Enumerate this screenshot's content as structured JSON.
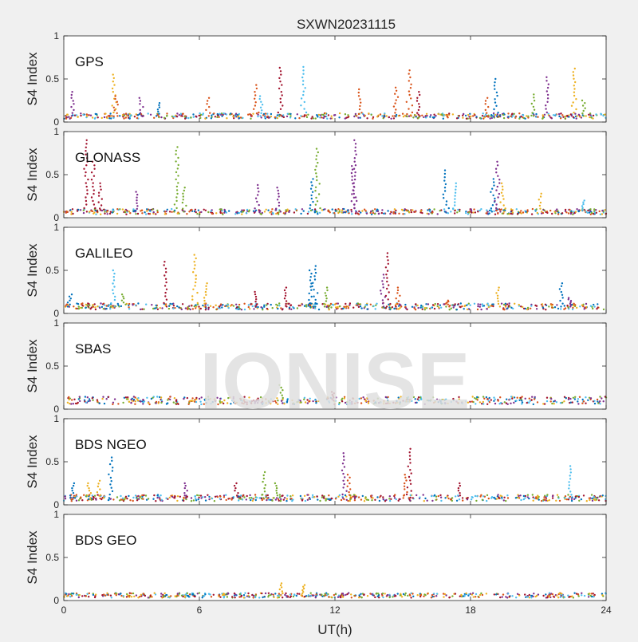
{
  "figure": {
    "title": "SXWN20231115",
    "xlabel": "UT(h)",
    "ylabel": "S4 Index",
    "watermark": "IONISE"
  },
  "colors": {
    "background": "#f0f0f0",
    "axes_bg": "#ffffff",
    "axis": "#262626",
    "watermark": "#e0e0e0",
    "series": [
      "#0072bd",
      "#d95319",
      "#edb120",
      "#7e2f8e",
      "#77ac30",
      "#4dbeee",
      "#a2142f"
    ]
  },
  "chart_data": [
    {
      "type": "scatter",
      "title": "GPS",
      "ylabel": "S4 Index",
      "xlim": [
        0,
        24
      ],
      "ylim": [
        0,
        1
      ],
      "xticks": [
        0,
        6,
        12,
        18,
        24
      ],
      "yticks": [
        0,
        0.5,
        1
      ],
      "grid": false,
      "baseline": 0.07,
      "spikes": [
        {
          "x": 0.4,
          "y": 0.35,
          "c": 3
        },
        {
          "x": 2.2,
          "y": 0.55,
          "c": 2
        },
        {
          "x": 2.3,
          "y": 0.3,
          "c": 1
        },
        {
          "x": 3.4,
          "y": 0.28,
          "c": 3
        },
        {
          "x": 4.2,
          "y": 0.22,
          "c": 0
        },
        {
          "x": 6.4,
          "y": 0.28,
          "c": 1
        },
        {
          "x": 8.5,
          "y": 0.43,
          "c": 1
        },
        {
          "x": 8.7,
          "y": 0.3,
          "c": 5
        },
        {
          "x": 9.6,
          "y": 0.63,
          "c": 6
        },
        {
          "x": 10.6,
          "y": 0.64,
          "c": 5
        },
        {
          "x": 13.1,
          "y": 0.38,
          "c": 1
        },
        {
          "x": 14.7,
          "y": 0.4,
          "c": 1
        },
        {
          "x": 15.3,
          "y": 0.6,
          "c": 1
        },
        {
          "x": 15.7,
          "y": 0.35,
          "c": 6
        },
        {
          "x": 18.7,
          "y": 0.28,
          "c": 1
        },
        {
          "x": 19.1,
          "y": 0.5,
          "c": 0
        },
        {
          "x": 20.8,
          "y": 0.32,
          "c": 4
        },
        {
          "x": 21.4,
          "y": 0.52,
          "c": 3
        },
        {
          "x": 22.6,
          "y": 0.62,
          "c": 2
        },
        {
          "x": 23.0,
          "y": 0.25,
          "c": 4
        }
      ]
    },
    {
      "type": "scatter",
      "title": "GLONASS",
      "ylabel": "S4 Index",
      "xlim": [
        0,
        24
      ],
      "ylim": [
        0,
        1
      ],
      "xticks": [
        0,
        6,
        12,
        18,
        24
      ],
      "yticks": [
        0,
        0.5,
        1
      ],
      "grid": false,
      "baseline": 0.07,
      "spikes": [
        {
          "x": 1.0,
          "y": 0.9,
          "c": 6
        },
        {
          "x": 1.3,
          "y": 0.65,
          "c": 6
        },
        {
          "x": 1.6,
          "y": 0.4,
          "c": 6
        },
        {
          "x": 3.2,
          "y": 0.3,
          "c": 3
        },
        {
          "x": 5.0,
          "y": 0.82,
          "c": 4
        },
        {
          "x": 5.3,
          "y": 0.35,
          "c": 4
        },
        {
          "x": 8.6,
          "y": 0.38,
          "c": 3
        },
        {
          "x": 9.5,
          "y": 0.35,
          "c": 3
        },
        {
          "x": 11.2,
          "y": 0.8,
          "c": 4
        },
        {
          "x": 11.0,
          "y": 0.45,
          "c": 0
        },
        {
          "x": 12.8,
          "y": 0.6,
          "c": 3
        },
        {
          "x": 12.9,
          "y": 0.9,
          "c": 3
        },
        {
          "x": 16.9,
          "y": 0.55,
          "c": 0
        },
        {
          "x": 17.3,
          "y": 0.4,
          "c": 5
        },
        {
          "x": 19.0,
          "y": 0.45,
          "c": 0
        },
        {
          "x": 19.2,
          "y": 0.65,
          "c": 3
        },
        {
          "x": 19.4,
          "y": 0.4,
          "c": 2
        },
        {
          "x": 21.1,
          "y": 0.28,
          "c": 2
        },
        {
          "x": 23.0,
          "y": 0.2,
          "c": 5
        }
      ]
    },
    {
      "type": "scatter",
      "title": "GALILEO",
      "ylabel": "S4 Index",
      "xlim": [
        0,
        24
      ],
      "ylim": [
        0,
        1
      ],
      "xticks": [
        0,
        6,
        12,
        18,
        24
      ],
      "yticks": [
        0,
        0.5,
        1
      ],
      "grid": false,
      "baseline": 0.08,
      "spikes": [
        {
          "x": 0.3,
          "y": 0.22,
          "c": 0
        },
        {
          "x": 2.2,
          "y": 0.5,
          "c": 5
        },
        {
          "x": 2.6,
          "y": 0.22,
          "c": 4
        },
        {
          "x": 4.5,
          "y": 0.6,
          "c": 6
        },
        {
          "x": 5.8,
          "y": 0.68,
          "c": 2
        },
        {
          "x": 6.3,
          "y": 0.35,
          "c": 2
        },
        {
          "x": 8.5,
          "y": 0.25,
          "c": 6
        },
        {
          "x": 9.8,
          "y": 0.3,
          "c": 6
        },
        {
          "x": 10.9,
          "y": 0.5,
          "c": 0
        },
        {
          "x": 11.1,
          "y": 0.55,
          "c": 0
        },
        {
          "x": 11.6,
          "y": 0.3,
          "c": 4
        },
        {
          "x": 14.3,
          "y": 0.7,
          "c": 6
        },
        {
          "x": 14.1,
          "y": 0.45,
          "c": 3
        },
        {
          "x": 14.8,
          "y": 0.3,
          "c": 1
        },
        {
          "x": 17.0,
          "y": 0.15,
          "c": 1
        },
        {
          "x": 19.2,
          "y": 0.3,
          "c": 2
        },
        {
          "x": 22.0,
          "y": 0.35,
          "c": 0
        },
        {
          "x": 22.4,
          "y": 0.18,
          "c": 3
        }
      ]
    },
    {
      "type": "scatter",
      "title": "SBAS",
      "ylabel": "S4 Index",
      "xlim": [
        0,
        24
      ],
      "ylim": [
        0,
        1
      ],
      "xticks": [
        0,
        6,
        12,
        18,
        24
      ],
      "yticks": [
        0,
        0.5,
        1
      ],
      "grid": false,
      "baseline": 0.1,
      "spikes": [
        {
          "x": 9.6,
          "y": 0.28,
          "c": 4
        },
        {
          "x": 11.9,
          "y": 0.2,
          "c": 6
        }
      ]
    },
    {
      "type": "scatter",
      "title": "BDS NGEO",
      "ylabel": "S4 Index",
      "xlim": [
        0,
        24
      ],
      "ylim": [
        0,
        1
      ],
      "xticks": [
        0,
        6,
        12,
        18,
        24
      ],
      "yticks": [
        0,
        0.5,
        1
      ],
      "grid": false,
      "baseline": 0.08,
      "spikes": [
        {
          "x": 0.4,
          "y": 0.25,
          "c": 0
        },
        {
          "x": 1.1,
          "y": 0.25,
          "c": 2
        },
        {
          "x": 1.6,
          "y": 0.28,
          "c": 2
        },
        {
          "x": 2.1,
          "y": 0.55,
          "c": 0
        },
        {
          "x": 5.4,
          "y": 0.25,
          "c": 3
        },
        {
          "x": 7.6,
          "y": 0.25,
          "c": 6
        },
        {
          "x": 8.9,
          "y": 0.38,
          "c": 4
        },
        {
          "x": 9.4,
          "y": 0.25,
          "c": 4
        },
        {
          "x": 12.4,
          "y": 0.6,
          "c": 3
        },
        {
          "x": 12.6,
          "y": 0.35,
          "c": 1
        },
        {
          "x": 15.3,
          "y": 0.65,
          "c": 6
        },
        {
          "x": 15.1,
          "y": 0.35,
          "c": 1
        },
        {
          "x": 17.5,
          "y": 0.25,
          "c": 6
        },
        {
          "x": 22.4,
          "y": 0.45,
          "c": 5
        }
      ]
    },
    {
      "type": "scatter",
      "title": "BDS GEO",
      "ylabel": "S4 Index",
      "xlim": [
        0,
        24
      ],
      "ylim": [
        0,
        1
      ],
      "xticks": [
        0,
        6,
        12,
        18,
        24
      ],
      "yticks": [
        0,
        0.5,
        1
      ],
      "grid": false,
      "baseline": 0.06,
      "spikes": [
        {
          "x": 9.6,
          "y": 0.2,
          "c": 2
        },
        {
          "x": 10.6,
          "y": 0.18,
          "c": 2
        }
      ]
    }
  ]
}
